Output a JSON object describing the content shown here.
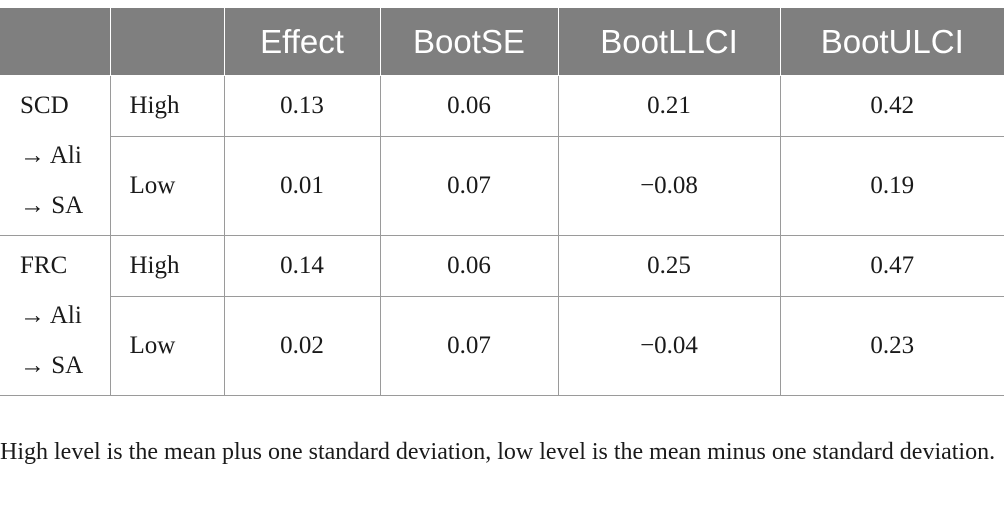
{
  "table": {
    "headers": [
      "",
      "",
      "Effect",
      "BootSE",
      "BootLLCI",
      "BootULCI"
    ],
    "groups": [
      {
        "path": [
          "SCD",
          "→ Ali",
          "→ SA"
        ],
        "rows": [
          {
            "level": "High",
            "effect": "0.13",
            "boot_se": "0.06",
            "boot_llci": "0.21",
            "boot_ulci": "0.42"
          },
          {
            "level": "Low",
            "effect": "0.01",
            "boot_se": "0.07",
            "boot_llci": "−0.08",
            "boot_ulci": "0.19"
          }
        ]
      },
      {
        "path": [
          "FRC",
          "→ Ali",
          "→ SA"
        ],
        "rows": [
          {
            "level": "High",
            "effect": "0.14",
            "boot_se": "0.06",
            "boot_llci": "0.25",
            "boot_ulci": "0.47"
          },
          {
            "level": "Low",
            "effect": "0.02",
            "boot_se": "0.07",
            "boot_llci": "−0.04",
            "boot_ulci": "0.23"
          }
        ]
      }
    ]
  },
  "footnote": "High level is the mean plus one standard deviation, low level is the mean minus one standard deviation.",
  "colors": {
    "header_bg": "#7f7f7f",
    "header_text": "#ffffff",
    "grid": "#9a9a9a"
  }
}
